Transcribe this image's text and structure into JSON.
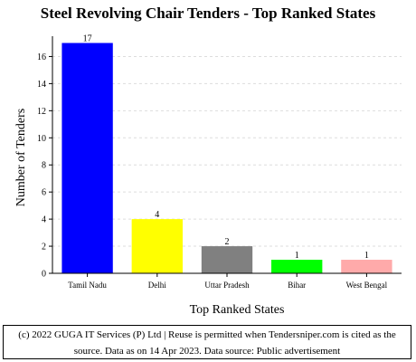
{
  "chart_data": {
    "type": "bar",
    "title": "Steel Revolving Chair Tenders - Top Ranked States",
    "xlabel": "Top Ranked States",
    "ylabel": "Number of Tenders",
    "categories": [
      "Tamil Nadu",
      "Delhi",
      "Uttar Pradesh",
      "Bihar",
      "West Bengal"
    ],
    "values": [
      17,
      4,
      2,
      1,
      1
    ],
    "data_labels": [
      "17",
      "4",
      "2",
      "1",
      "1"
    ],
    "bar_colors": [
      "#0000ff",
      "#ffff00",
      "#808080",
      "#00ff00",
      "#ffaaaa"
    ],
    "ylim": [
      0,
      17.5
    ],
    "yticks": [
      0,
      2,
      4,
      6,
      8,
      10,
      12,
      14,
      16
    ],
    "grid": true
  },
  "footer": {
    "line1": "(c) 2022 GUGA IT Services (P) Ltd | Reuse is permitted when Tendersniper.com is cited as the",
    "line2": "source. Data as on 14 Apr 2023. Data source: Public advertisement"
  }
}
